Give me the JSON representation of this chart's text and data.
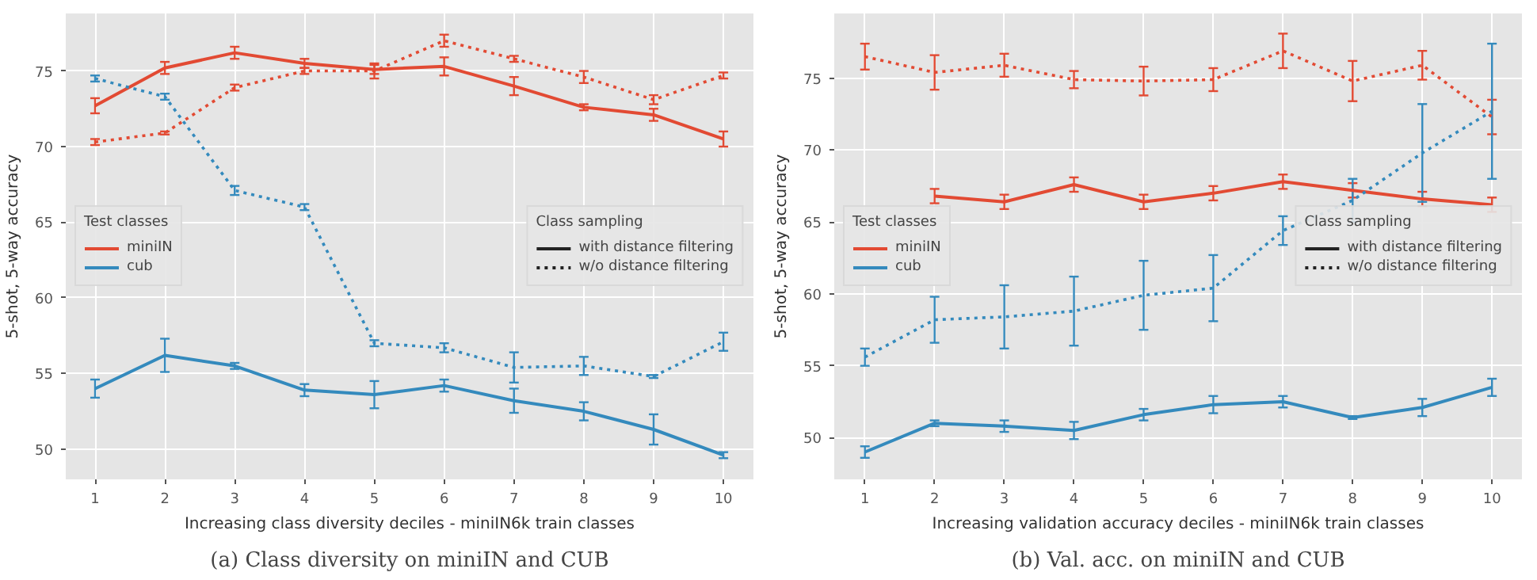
{
  "chart_data": [
    {
      "type": "line",
      "title": "(a) Class diversity on miniIN and CUB",
      "xlabel": "Increasing class diversity deciles - miniIN6k train classes",
      "ylabel": "5-shot, 5-way accuracy",
      "legend_title": "Test classes",
      "legend": "center left",
      "grid": true,
      "marker": "none",
      "x": [
        1,
        2,
        3,
        4,
        5,
        6,
        7,
        8,
        9,
        10
      ],
      "xlim": [
        0.58,
        10.43
      ],
      "xticks": [
        1,
        2,
        3,
        4,
        5,
        6,
        7,
        8,
        9,
        10
      ],
      "ylim": [
        48.0,
        78.8
      ],
      "yticks": [
        50,
        55,
        60,
        65,
        70,
        75
      ],
      "annotations": [
        "Class sampling",
        "with distance filtering",
        "w/o distance filtering"
      ],
      "series": [
        {
          "name": "miniIN",
          "color": "#e24a33",
          "line_style": "solid",
          "values": [
            72.7,
            75.2,
            76.2,
            75.5,
            75.1,
            75.3,
            74.0,
            72.6,
            72.1,
            70.5
          ],
          "errors": [
            0.5,
            0.4,
            0.4,
            0.3,
            0.3,
            0.6,
            0.6,
            0.2,
            0.4,
            0.5
          ]
        },
        {
          "color": "#e24a33",
          "line_style": "dotted",
          "values": [
            70.3,
            70.9,
            73.9,
            75.0,
            75.0,
            77.0,
            75.8,
            74.6,
            73.1,
            74.7
          ],
          "errors": [
            0.2,
            0.1,
            0.2,
            0.2,
            0.5,
            0.4,
            0.2,
            0.4,
            0.3,
            0.2
          ]
        },
        {
          "name": "cub",
          "color": "#348abd",
          "line_style": "solid",
          "values": [
            54.0,
            56.2,
            55.5,
            53.9,
            53.6,
            54.2,
            53.2,
            52.5,
            51.3,
            49.6
          ],
          "errors": [
            0.6,
            1.1,
            0.2,
            0.4,
            0.9,
            0.4,
            0.8,
            0.6,
            1.0,
            0.2
          ]
        },
        {
          "color": "#348abd",
          "line_style": "dotted",
          "values": [
            74.5,
            73.3,
            67.1,
            66.0,
            57.0,
            56.7,
            55.4,
            55.5,
            54.8,
            57.1
          ],
          "errors": [
            0.2,
            0.2,
            0.3,
            0.2,
            0.2,
            0.3,
            1.0,
            0.6,
            0.1,
            0.6
          ]
        }
      ]
    },
    {
      "type": "line",
      "title": "(b) Val. acc. on miniIN and CUB",
      "xlabel": "Increasing validation accuracy deciles - miniIN6k train classes",
      "ylabel": "5-shot, 5-way accuracy",
      "legend_title": "Test classes",
      "legend": "center left",
      "grid": true,
      "marker": "none",
      "x": [
        1,
        2,
        3,
        4,
        5,
        6,
        7,
        8,
        9,
        10
      ],
      "xlim": [
        0.56,
        10.43
      ],
      "xticks": [
        1,
        2,
        3,
        4,
        5,
        6,
        7,
        8,
        9,
        10
      ],
      "ylim": [
        47.1,
        79.5
      ],
      "yticks": [
        50,
        55,
        60,
        65,
        70,
        75
      ],
      "annotations": [
        "Class sampling",
        "with distance filtering",
        "w/o distance filtering"
      ],
      "series": [
        {
          "name": "miniIN",
          "color": "#e24a33",
          "line_style": "solid",
          "values": [
            null,
            66.8,
            66.4,
            67.6,
            66.4,
            67.0,
            67.8,
            67.2,
            66.6,
            66.2
          ],
          "errors": [
            null,
            0.5,
            0.5,
            0.5,
            0.5,
            0.5,
            0.5,
            0.5,
            0.5,
            0.5
          ]
        },
        {
          "color": "#e24a33",
          "line_style": "dotted",
          "values": [
            76.5,
            75.4,
            75.9,
            74.9,
            74.8,
            74.9,
            76.9,
            74.8,
            75.9,
            72.3
          ],
          "errors": [
            0.9,
            1.2,
            0.8,
            0.6,
            1.0,
            0.8,
            1.2,
            1.4,
            1.0,
            1.2
          ]
        },
        {
          "name": "cub",
          "color": "#348abd",
          "line_style": "solid",
          "values": [
            49.0,
            51.0,
            50.8,
            50.5,
            51.6,
            52.3,
            52.5,
            51.4,
            52.1,
            53.5
          ],
          "errors": [
            0.4,
            0.2,
            0.4,
            0.6,
            0.4,
            0.6,
            0.4,
            0.1,
            0.6,
            0.6
          ]
        },
        {
          "color": "#348abd",
          "line_style": "dotted",
          "values": [
            55.6,
            58.2,
            58.4,
            58.8,
            59.9,
            60.4,
            64.4,
            66.5,
            69.8,
            72.7
          ],
          "errors": [
            0.6,
            1.6,
            2.2,
            2.4,
            2.4,
            2.3,
            1.0,
            1.5,
            3.4,
            4.7
          ]
        }
      ]
    }
  ]
}
